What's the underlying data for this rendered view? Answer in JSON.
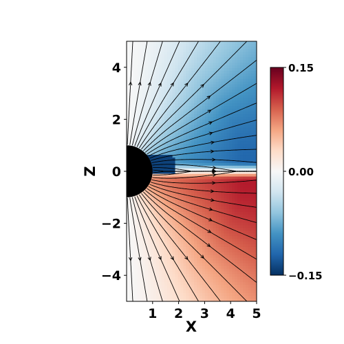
{
  "chart_data": {
    "type": "heatmap",
    "xlabel": "X",
    "ylabel": "Z",
    "xlim": [
      0,
      5
    ],
    "ylim": [
      -5,
      5
    ],
    "x_ticks": [
      {
        "value": 1,
        "label": "1"
      },
      {
        "value": 2,
        "label": "2"
      },
      {
        "value": 3,
        "label": "3"
      },
      {
        "value": 4,
        "label": "4"
      },
      {
        "value": 5,
        "label": "5"
      }
    ],
    "y_ticks": [
      {
        "value": 4,
        "label": "4"
      },
      {
        "value": 2,
        "label": "2"
      },
      {
        "value": 0,
        "label": "0"
      },
      {
        "value": -2,
        "label": "−2"
      },
      {
        "value": -4,
        "label": "−4"
      }
    ],
    "colorbar": {
      "colormap": "RdBu_r",
      "min": -0.15,
      "max": 0.15,
      "ticks": [
        {
          "value": 0.15,
          "label": "0.15"
        },
        {
          "value": 0.0,
          "label": "0.00"
        },
        {
          "value": -0.15,
          "label": "−0.15"
        }
      ]
    },
    "field": {
      "description_of_pattern": "negative (blue) above the equator, positive (red) below; near zero at large polar angles",
      "upper_value": -0.12,
      "lower_value": 0.12
    },
    "obstacle": {
      "shape": "circle",
      "center": [
        0,
        0
      ],
      "radius": 1.0,
      "color": "#000000"
    },
    "streamlines": {
      "color": "#000000",
      "arrows": true
    }
  }
}
